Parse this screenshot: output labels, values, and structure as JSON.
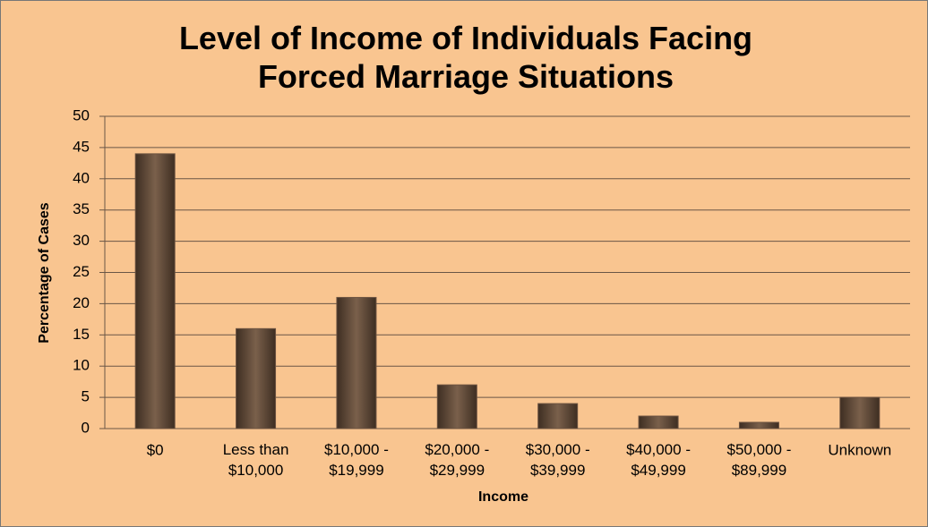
{
  "chart_data": {
    "type": "bar",
    "title": "Level of Income of Individuals Facing\nForced Marriage Situations",
    "x_label": "Income",
    "y_label": "Percentage of Cases",
    "categories": [
      "$0",
      "Less than\n$10,000",
      "$10,000 -\n$19,999",
      "$20,000 -\n$29,999",
      "$30,000 -\n$39,999",
      "$40,000 -\n$49,999",
      "$50,000 -\n$89,999",
      "Unknown"
    ],
    "values": [
      44,
      16,
      21,
      7,
      4,
      2,
      1,
      5
    ],
    "color": "#6b5240",
    "ylim": [
      0,
      50
    ],
    "yticks": [
      0,
      5,
      10,
      15,
      20,
      25,
      30,
      35,
      40,
      45,
      50
    ],
    "grid": true
  }
}
